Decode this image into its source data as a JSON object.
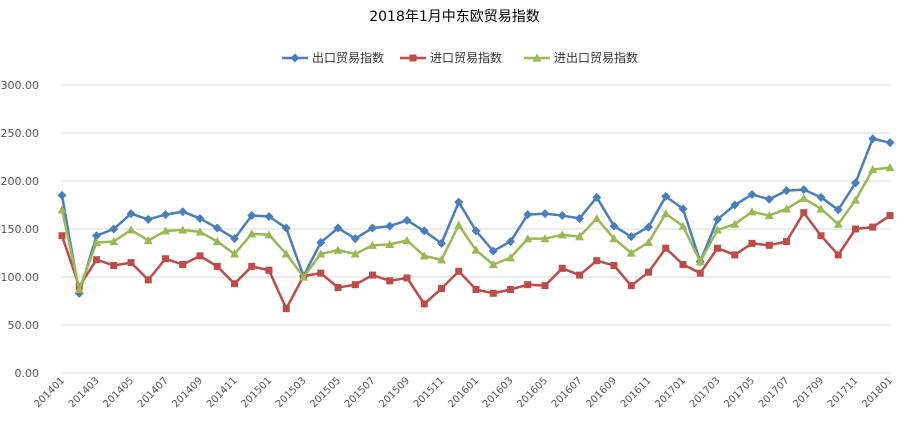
{
  "chart_data": {
    "type": "line",
    "title": "2018年1月中东欧贸易指数",
    "xlabel": "",
    "ylabel": "",
    "ylim": [
      0,
      300
    ],
    "yticks": [
      "0.00",
      "50.00",
      "100.00",
      "150.00",
      "200.00",
      "250.00",
      "300.00"
    ],
    "grid": true,
    "legend_position": "top",
    "x_tick_labels": [
      "201401",
      "201403",
      "201405",
      "201407",
      "201409",
      "201411",
      "201501",
      "201503",
      "201505",
      "201507",
      "201509",
      "201511",
      "201601",
      "201603",
      "201605",
      "201607",
      "201609",
      "201611",
      "201701",
      "201703",
      "201705",
      "201707",
      "201709",
      "201711",
      "201801"
    ],
    "categories": [
      "201401",
      "201402",
      "201403",
      "201404",
      "201405",
      "201406",
      "201407",
      "201408",
      "201409",
      "201410",
      "201411",
      "201412",
      "201501",
      "201502",
      "201503",
      "201504",
      "201505",
      "201506",
      "201507",
      "201508",
      "201509",
      "201510",
      "201511",
      "201512",
      "201601",
      "201602",
      "201603",
      "201604",
      "201605",
      "201606",
      "201607",
      "201608",
      "201609",
      "201610",
      "201611",
      "201612",
      "201701",
      "201702",
      "201703",
      "201704",
      "201705",
      "201706",
      "201707",
      "201708",
      "201709",
      "201710",
      "201711",
      "201712",
      "201801"
    ],
    "series": [
      {
        "name": "出口贸易指数",
        "color": "#4a7ebb",
        "marker": "diamond",
        "values": [
          185,
          83,
          143,
          150,
          166,
          160,
          165,
          168,
          161,
          151,
          140,
          164,
          163,
          151,
          101,
          136,
          151,
          140,
          151,
          153,
          159,
          148,
          135,
          178,
          148,
          127,
          137,
          165,
          166,
          164,
          161,
          183,
          153,
          142,
          152,
          184,
          171,
          116,
          160,
          175,
          186,
          181,
          190,
          191,
          183,
          170,
          198,
          244,
          240
        ]
      },
      {
        "name": "进口贸易指数",
        "color": "#be4b48",
        "marker": "square",
        "values": [
          143,
          90,
          118,
          112,
          115,
          97,
          119,
          113,
          122,
          111,
          93,
          111,
          107,
          67,
          101,
          104,
          89,
          92,
          102,
          96,
          99,
          72,
          88,
          106,
          87,
          83,
          87,
          92,
          91,
          109,
          102,
          117,
          112,
          91,
          105,
          130,
          113,
          104,
          130,
          123,
          135,
          133,
          137,
          167,
          143,
          123,
          150,
          152,
          164
        ]
      },
      {
        "name": "进出口贸易指数",
        "color": "#98b954",
        "marker": "triangle",
        "values": [
          170,
          87,
          136,
          137,
          149,
          138,
          148,
          149,
          147,
          137,
          124,
          145,
          144,
          124,
          100,
          124,
          128,
          124,
          133,
          134,
          138,
          122,
          118,
          154,
          128,
          113,
          120,
          140,
          140,
          144,
          142,
          161,
          140,
          125,
          136,
          166,
          153,
          116,
          149,
          155,
          168,
          164,
          171,
          182,
          171,
          155,
          180,
          212,
          214
        ]
      }
    ]
  }
}
